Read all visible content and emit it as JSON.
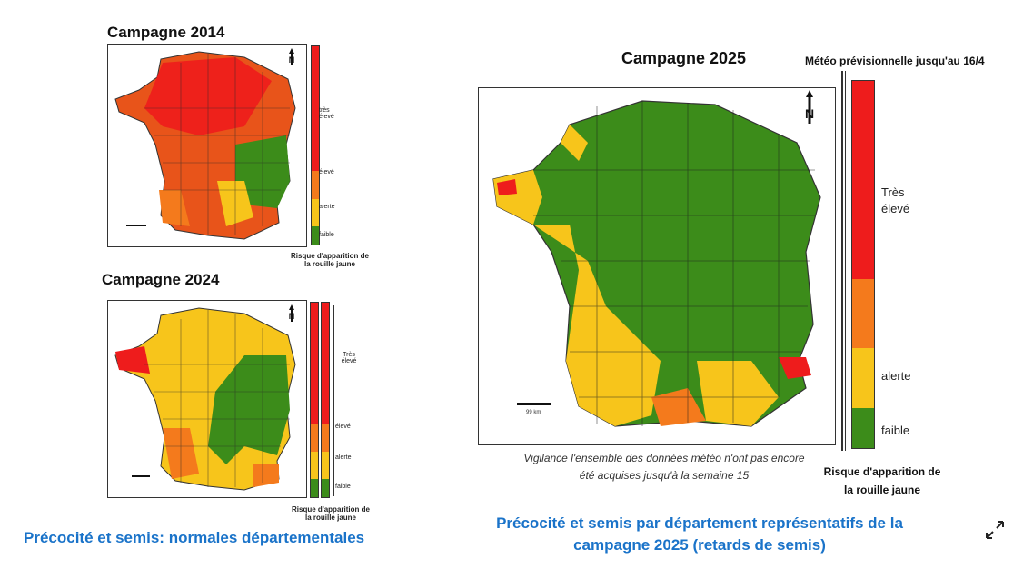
{
  "panel_2014": {
    "title": "Campagne 2014",
    "legend_labels": [
      "très élevé",
      "élevé",
      "alerte",
      "faible"
    ],
    "caption": "Risque d'apparition de\nla rouille jaune"
  },
  "panel_2024": {
    "title": "Campagne 2024",
    "legend_labels": [
      "Très élevé",
      "élevé",
      "alerte",
      "faible"
    ],
    "caption": "Risque d'apparition de\nla rouille jaune"
  },
  "panel_2025": {
    "title": "Campagne 2025",
    "forecast_note": "Météo prévisionnelle jusqu'au 16/4",
    "legend_labels": [
      "Très élevé",
      "alerte",
      "faible"
    ],
    "scale_label": "99 km",
    "vigilance_note": "Vigilance l'ensemble des données météo n'ont pas encore été acquises jusqu'à la semaine 15",
    "caption": "Risque d'apparition de\nla rouille jaune"
  },
  "north_label": "N",
  "footer_left": "Précocité et semis: normales départementales",
  "footer_right": "Précocité et semis par département représentatifs de la campagne 2025 (retards de semis)",
  "colors": {
    "very_high": "#ee1c1c",
    "high": "#f47a1c",
    "alert": "#f7c51b",
    "low": "#3c8c1a",
    "accent_blue": "#1a73c9"
  },
  "icons": {
    "expand": "expand-icon",
    "north": "north-arrow-icon"
  }
}
